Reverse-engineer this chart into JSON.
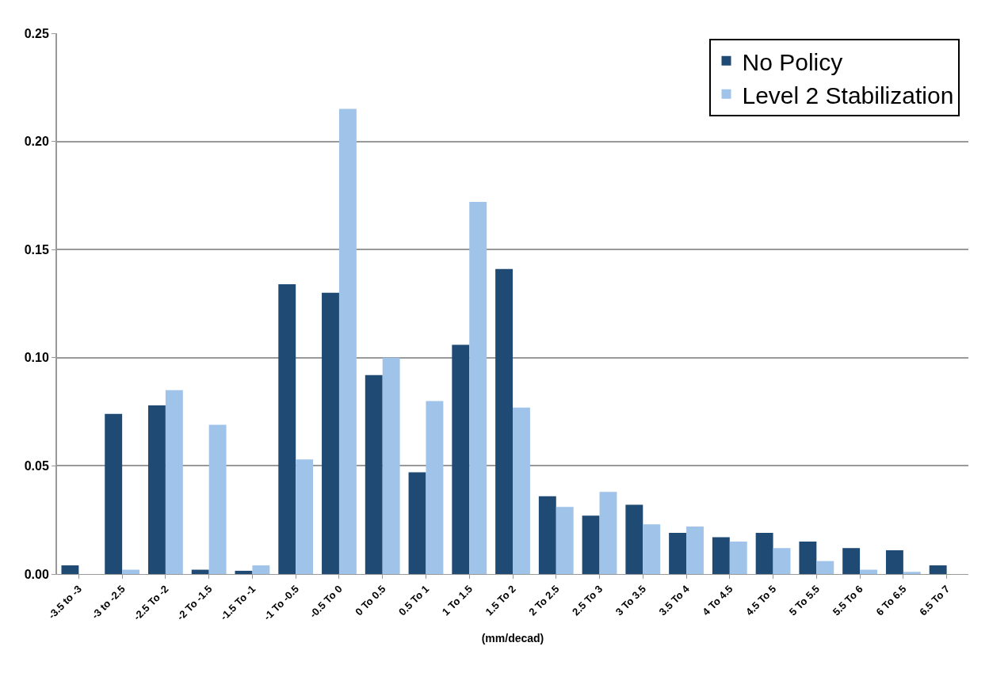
{
  "chart_data": {
    "type": "bar",
    "xlabel": "(mm/decad)",
    "categories": [
      "-3.5 to -3",
      "-3 to -2.5",
      "-2.5 To -2",
      "-2 To -1.5",
      "-1.5 To -1",
      "-1 To -0.5",
      "-0.5 To 0",
      "0 To 0.5",
      "0.5 To 1",
      "1 To 1.5",
      "1.5 To 2",
      "2 To 2.5",
      "2.5 To 3",
      "3 To 3.5",
      "3.5 To 4",
      "4 To 4.5",
      "4.5 To 5",
      "5 To 5.5",
      "5.5 To 6",
      "6 To 6.5",
      "6.5 To 7"
    ],
    "series": [
      {
        "name": "No Policy",
        "color": "#1f4a74",
        "values": [
          0.004,
          0.074,
          0.078,
          0.002,
          0.0015,
          0.134,
          0.13,
          0.092,
          0.047,
          0.106,
          0.141,
          0.036,
          0.027,
          0.032,
          0.019,
          0.017,
          0.019,
          0.015,
          0.012,
          0.011,
          0.004
        ]
      },
      {
        "name": "Level 2 Stabilization",
        "color": "#a0c3e9",
        "values": [
          0,
          0.002,
          0.085,
          0.069,
          0.004,
          0.053,
          0.215,
          0.1,
          0.08,
          0.172,
          0.077,
          0.031,
          0.038,
          0.023,
          0.022,
          0.015,
          0.012,
          0.006,
          0.002,
          0.001,
          0
        ]
      }
    ],
    "ylim": [
      0,
      0.25
    ],
    "yticks": [
      {
        "value": 0,
        "label": "0.00"
      },
      {
        "value": 0.05,
        "label": "0.05"
      },
      {
        "value": 0.1,
        "label": "0.10"
      },
      {
        "value": 0.15,
        "label": "0.15"
      },
      {
        "value": 0.2,
        "label": "0.20"
      },
      {
        "value": 0.25,
        "label": "0.25"
      }
    ],
    "grid": "y",
    "legend": "top right"
  }
}
